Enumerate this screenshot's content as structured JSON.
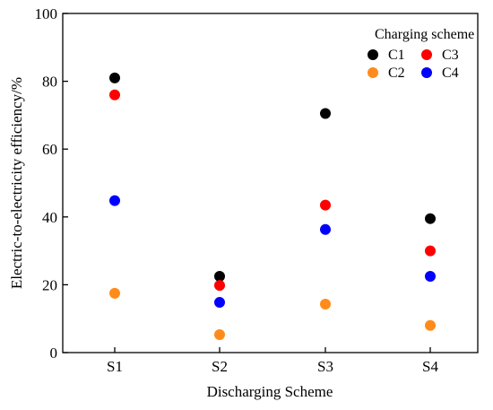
{
  "chart_data": {
    "type": "scatter",
    "categories": [
      "S1",
      "S2",
      "S3",
      "S4"
    ],
    "xlabel": "Discharging Scheme",
    "ylabel": "Electric-to-electricity efficiency/%",
    "ylim": [
      0,
      100
    ],
    "yticks": [
      0,
      20,
      40,
      60,
      80,
      100
    ],
    "grid": false,
    "legend": {
      "title": "Charging scheme",
      "placement": "top-right",
      "columns": 2
    },
    "series": [
      {
        "name": "C1",
        "color": "#000000",
        "values": [
          81,
          22.5,
          70.5,
          39.5
        ]
      },
      {
        "name": "C2",
        "color": "#ff8c1a",
        "values": [
          17.5,
          5.3,
          14.3,
          8
        ]
      },
      {
        "name": "C3",
        "color": "#ff0000",
        "values": [
          76,
          19.8,
          43.5,
          30
        ]
      },
      {
        "name": "C4",
        "color": "#0000ff",
        "values": [
          44.8,
          14.8,
          36.3,
          22.5
        ]
      }
    ]
  }
}
